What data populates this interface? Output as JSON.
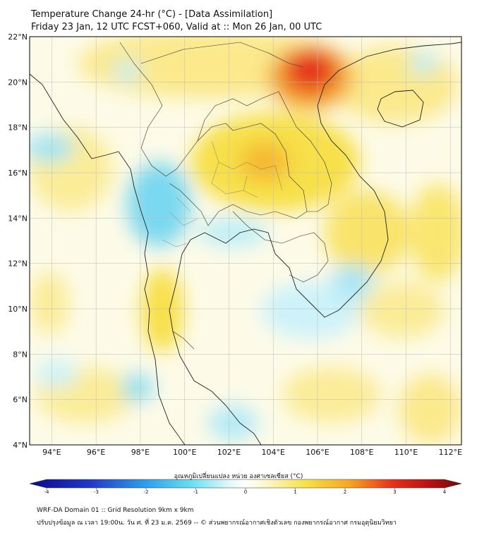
{
  "header": {
    "title": "Temperature Change 24-hr (°C) - [Data Assimilation]",
    "subtitle": "Friday 23 Jan, 12 UTC FCST+060, Valid at :: Mon 26 Jan, 00 UTC"
  },
  "map": {
    "lat_labels": [
      "22°N",
      "20°N",
      "18°N",
      "16°N",
      "14°N",
      "12°N",
      "10°N",
      "8°N",
      "6°N",
      "4°N"
    ],
    "lon_labels": [
      "94°E",
      "96°E",
      "98°E",
      "100°E",
      "102°E",
      "104°E",
      "106°E",
      "108°E",
      "110°E",
      "112°E"
    ]
  },
  "colorbar": {
    "label": "อุณหภูมิเปลี่ยนแปลง หน่วย องศาเซลเซียส (°C)",
    "ticks": [
      "-4",
      "-3",
      "-2",
      "-1",
      "0",
      "1",
      "2",
      "3",
      "4"
    ],
    "colors": {
      "cold": "#0a0a8a",
      "cool": "#3fc4ee",
      "neutral": "#ffffff",
      "warm": "#f7e047",
      "hot": "#e0301c",
      "extreme": "#6e0707"
    }
  },
  "footer": {
    "line1": "WRF-DA Domain 01 :: Grid Resolution 9km x 9km",
    "line2": "ปรับปรุงข้อมูล ณ เวลา 19:00น. วัน ศ. ที่ 23 ม.ค. 2569 -- © ส่วนพยากรณ์อากาศเชิงตัวเลข กองพยากรณ์อากาศ กรมอุตุนิยมวิทยา"
  }
}
